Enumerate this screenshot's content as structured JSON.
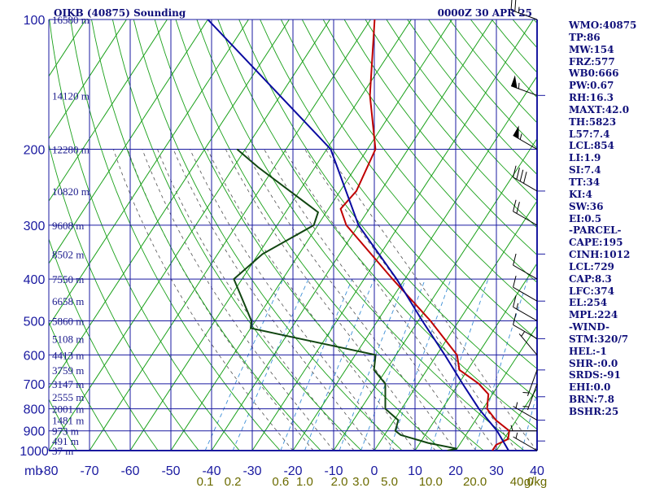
{
  "header": {
    "station": "OIKB (40875) Sounding",
    "time": "0000Z 30 APR 25"
  },
  "indices": [
    "WMO:40875",
    "TP:86",
    "MW:154",
    "FRZ:577",
    "WB0:666",
    "PW:0.67",
    "RH:16.3",
    "MAXT:42.0",
    "TH:5823",
    "L57:7.4",
    "LCL:854",
    "LI:1.9",
    "SI:7.4",
    "TT:34",
    "KI:4",
    "SW:36",
    "EI:0.5",
    "-PARCEL-",
    "CAPE:195",
    "CINH:1012",
    "LCL:729",
    "CAP:8.3",
    "LFC:374",
    "EL:254",
    "MPL:224",
    "-WIND-",
    "STM:320/7",
    "HEL:-1",
    "SHR-:0.0",
    "SRDS:-91",
    "EHI:0.0",
    "BRN:7.8",
    "BSHR:25"
  ],
  "colors": {
    "grid": "#1a1aa0",
    "isotherm": "#19a019",
    "dry_adiabat": "#19a019",
    "moist_adiabat": "#505050",
    "mixing_ratio": "#3d8fd6",
    "temperature": "#c00000",
    "dewpoint": "#114611",
    "parcel": "#0a0aa0",
    "wind": "#000000"
  },
  "chart_data": {
    "type": "skew-t",
    "pressure_unit": "mb",
    "temperature_unit_ticks": [
      "-80",
      "-70",
      "-60",
      "-50",
      "-40",
      "-30",
      "-20",
      "-10",
      "0",
      "10",
      "20",
      "30",
      "40"
    ],
    "temperature_ticks_values": [
      -80,
      -70,
      -60,
      -50,
      -40,
      -30,
      -20,
      -10,
      0,
      10,
      20,
      30,
      40
    ],
    "pressure_levels": [
      100,
      200,
      300,
      400,
      500,
      600,
      700,
      800,
      900,
      1000
    ],
    "pressure_labels": [
      "100",
      "200",
      "300",
      "400",
      "500",
      "600",
      "700",
      "800",
      "900",
      "1000"
    ],
    "mixing_ratio_labels": [
      "0.1",
      "0.2",
      "0.6",
      "1.0",
      "2.0",
      "3.0",
      "5.0",
      "10.0",
      "20.0",
      "40.0"
    ],
    "mixing_ratio_values": [
      0.1,
      0.2,
      0.6,
      1.0,
      2.0,
      3.0,
      5.0,
      10.0,
      20.0,
      40.0
    ],
    "mixing_ratio_unit": "g/kg",
    "height_labels": [
      {
        "p": 100,
        "text": "16580 m"
      },
      {
        "p": 150,
        "text": "14120 m"
      },
      {
        "p": 200,
        "text": "12280 m"
      },
      {
        "p": 250,
        "text": "10820 m"
      },
      {
        "p": 300,
        "text": "9608 m"
      },
      {
        "p": 350,
        "text": "8502 m"
      },
      {
        "p": 400,
        "text": "7550 m"
      },
      {
        "p": 450,
        "text": "6658 m"
      },
      {
        "p": 500,
        "text": "5860 m"
      },
      {
        "p": 550,
        "text": "5108 m"
      },
      {
        "p": 600,
        "text": "4413 m"
      },
      {
        "p": 650,
        "text": "3759 m"
      },
      {
        "p": 700,
        "text": "3147 m"
      },
      {
        "p": 750,
        "text": "2555 m"
      },
      {
        "p": 800,
        "text": "2001 m"
      },
      {
        "p": 850,
        "text": "1481 m"
      },
      {
        "p": 900,
        "text": "973 m"
      },
      {
        "p": 950,
        "text": "491 m"
      },
      {
        "p": 1000,
        "text": "37 m"
      }
    ],
    "series": [
      {
        "name": "temperature",
        "points": [
          {
            "p": 100,
            "t": -69
          },
          {
            "p": 150,
            "t": -58
          },
          {
            "p": 200,
            "t": -48
          },
          {
            "p": 250,
            "t": -46
          },
          {
            "p": 275,
            "t": -47
          },
          {
            "p": 300,
            "t": -43
          },
          {
            "p": 400,
            "t": -23
          },
          {
            "p": 500,
            "t": -7
          },
          {
            "p": 600,
            "t": 5
          },
          {
            "p": 650,
            "t": 8
          },
          {
            "p": 700,
            "t": 15
          },
          {
            "p": 740,
            "t": 19
          },
          {
            "p": 800,
            "t": 21
          },
          {
            "p": 850,
            "t": 25
          },
          {
            "p": 900,
            "t": 30
          },
          {
            "p": 940,
            "t": 31
          },
          {
            "p": 970,
            "t": 29
          },
          {
            "p": 1000,
            "t": 29
          }
        ]
      },
      {
        "name": "dewpoint",
        "points": [
          {
            "p": 200,
            "t": -82
          },
          {
            "p": 220,
            "t": -74
          },
          {
            "p": 280,
            "t": -52
          },
          {
            "p": 300,
            "t": -51
          },
          {
            "p": 350,
            "t": -59
          },
          {
            "p": 400,
            "t": -62
          },
          {
            "p": 500,
            "t": -51
          },
          {
            "p": 520,
            "t": -50
          },
          {
            "p": 600,
            "t": -15
          },
          {
            "p": 650,
            "t": -13
          },
          {
            "p": 700,
            "t": -8
          },
          {
            "p": 800,
            "t": -4
          },
          {
            "p": 850,
            "t": 1
          },
          {
            "p": 900,
            "t": 2
          },
          {
            "p": 920,
            "t": 4
          },
          {
            "p": 960,
            "t": 12
          },
          {
            "p": 990,
            "t": 20
          },
          {
            "p": 1000,
            "t": 18
          }
        ]
      },
      {
        "name": "parcel",
        "points": [
          {
            "p": 100,
            "t": -110
          },
          {
            "p": 200,
            "t": -59
          },
          {
            "p": 300,
            "t": -40
          },
          {
            "p": 400,
            "t": -22
          },
          {
            "p": 500,
            "t": -9
          },
          {
            "p": 600,
            "t": 2
          },
          {
            "p": 700,
            "t": 11
          },
          {
            "p": 800,
            "t": 19
          },
          {
            "p": 900,
            "t": 27
          },
          {
            "p": 1000,
            "t": 33
          }
        ]
      }
    ],
    "wind_barbs": [
      {
        "p": 100,
        "dir": 290,
        "spd": 25
      },
      {
        "p": 150,
        "dir": 290,
        "spd": 55
      },
      {
        "p": 200,
        "dir": 300,
        "spd": 55
      },
      {
        "p": 250,
        "dir": 300,
        "spd": 40
      },
      {
        "p": 300,
        "dir": 300,
        "spd": 20
      },
      {
        "p": 400,
        "dir": 300,
        "spd": 10
      },
      {
        "p": 450,
        "dir": 300,
        "spd": 10
      },
      {
        "p": 500,
        "dir": 300,
        "spd": 15
      },
      {
        "p": 550,
        "dir": 300,
        "spd": 10
      },
      {
        "p": 600,
        "dir": 320,
        "spd": 5
      },
      {
        "p": 650,
        "dir": 200,
        "spd": 5
      },
      {
        "p": 700,
        "dir": 200,
        "spd": 5
      },
      {
        "p": 850,
        "dir": 300,
        "spd": 5
      },
      {
        "p": 900,
        "dir": 270,
        "spd": 5
      },
      {
        "p": 1000,
        "dir": 300,
        "spd": 5
      }
    ]
  }
}
